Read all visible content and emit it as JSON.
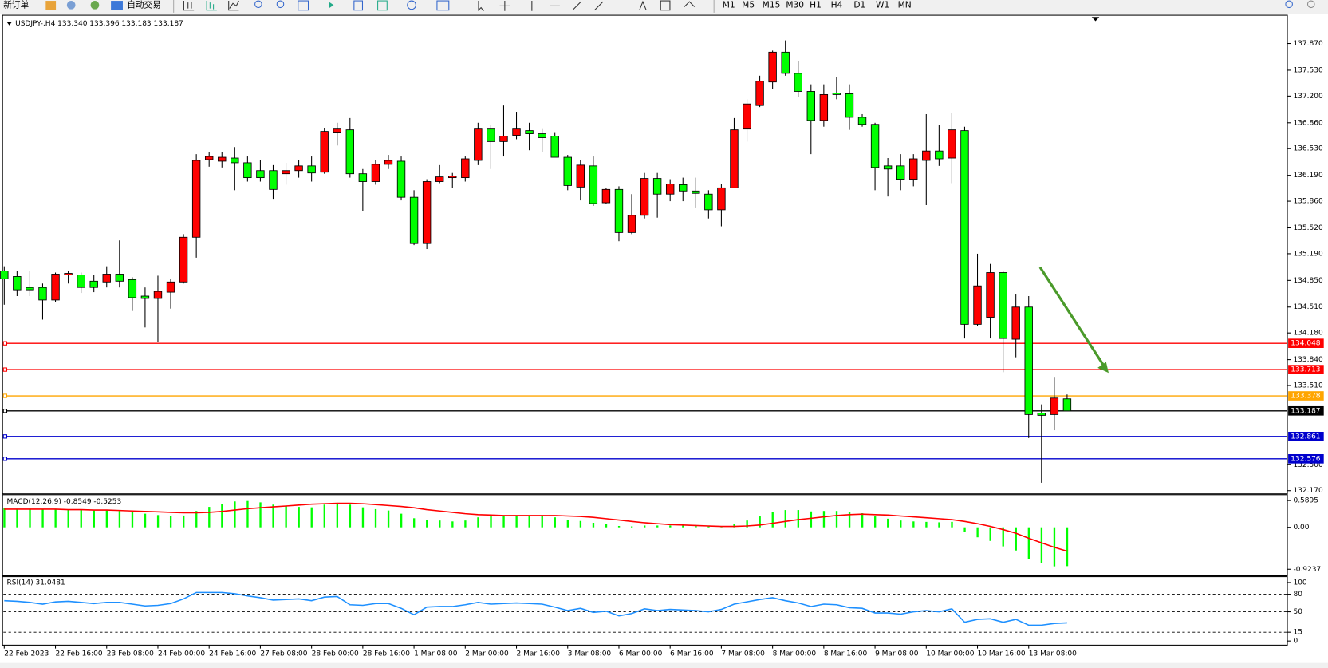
{
  "toolbar": {
    "new_order": "新订单",
    "auto_trading": "自动交易",
    "timeframes": [
      "M1",
      "M5",
      "M15",
      "M30",
      "H1",
      "H4",
      "D1",
      "W1",
      "MN"
    ]
  },
  "chart_data": [
    {
      "type": "candlestick",
      "title": "USDJPY-,H4  133.340 133.396 133.183 133.187",
      "categories": [
        "22 Feb 2023",
        null,
        null,
        null,
        "22 Feb 16:00",
        null,
        null,
        null,
        "23 Feb 08:00",
        null,
        null,
        null,
        "24 Feb 00:00",
        null,
        null,
        null,
        "24 Feb 16:00",
        null,
        null,
        null,
        "27 Feb 08:00",
        null,
        null,
        null,
        "28 Feb 00:00",
        null,
        null,
        null,
        "28 Feb 16:00",
        null,
        null,
        null,
        "1 Mar 08:00",
        null,
        null,
        null,
        "2 Mar 00:00",
        null,
        null,
        null,
        "2 Mar 16:00",
        null,
        null,
        null,
        "3 Mar 08:00",
        null,
        null,
        null,
        "6 Mar 00:00",
        null,
        null,
        null,
        "6 Mar 16:00",
        null,
        null,
        null,
        "7 Mar 08:00",
        null,
        null,
        null,
        "8 Mar 00:00",
        null,
        null,
        null,
        "8 Mar 16:00",
        null,
        null,
        null,
        "9 Mar 08:00",
        null,
        null,
        null,
        "10 Mar 00:00",
        null,
        null,
        null,
        "10 Mar 16:00",
        null,
        null,
        null,
        "13 Mar 08:00",
        null,
        null,
        null
      ],
      "open": [
        134.97,
        134.9,
        134.76,
        134.76,
        134.6,
        134.92,
        134.92,
        134.84,
        134.83,
        134.93,
        134.86,
        134.65,
        134.62,
        134.7,
        134.83,
        135.4,
        136.39,
        136.37,
        136.41,
        136.35,
        136.25,
        136.25,
        136.21,
        136.25,
        136.31,
        136.23,
        136.73,
        136.77,
        136.21,
        136.11,
        136.33,
        136.37,
        135.91,
        135.32,
        136.11,
        136.16,
        136.16,
        136.38,
        136.78,
        136.62,
        136.7,
        136.76,
        136.72,
        136.69,
        136.42,
        136.04,
        136.31,
        135.84,
        136.01,
        135.46,
        135.68,
        136.15,
        135.95,
        136.07,
        135.99,
        135.95,
        135.75,
        136.03,
        136.78,
        137.08,
        137.38,
        137.76,
        137.49,
        137.26,
        136.89,
        137.24,
        137.23,
        136.93,
        136.84,
        136.31,
        136.31,
        136.14,
        136.38,
        136.5,
        136.41,
        136.76,
        134.29,
        134.38,
        134.95,
        134.1,
        134.51,
        133.16,
        133.14,
        133.34
      ],
      "high": [
        135.03,
        134.97,
        134.97,
        134.81,
        134.95,
        134.97,
        134.95,
        134.92,
        135.03,
        135.36,
        134.89,
        134.76,
        134.91,
        134.87,
        135.44,
        136.46,
        136.49,
        136.49,
        136.55,
        136.43,
        136.38,
        136.32,
        136.35,
        136.38,
        136.43,
        136.79,
        136.86,
        136.92,
        136.27,
        136.38,
        136.45,
        136.43,
        136.0,
        136.14,
        136.32,
        136.22,
        136.43,
        136.86,
        136.83,
        137.08,
        137.0,
        136.86,
        136.78,
        136.73,
        136.45,
        136.38,
        136.43,
        136.03,
        136.05,
        135.95,
        136.22,
        136.22,
        136.14,
        136.16,
        136.16,
        136.0,
        136.08,
        136.92,
        137.16,
        137.46,
        137.78,
        137.91,
        137.65,
        137.35,
        137.35,
        137.44,
        137.35,
        136.97,
        136.86,
        136.41,
        136.46,
        136.46,
        136.97,
        136.83,
        136.99,
        136.81,
        135.19,
        135.06,
        134.97,
        134.67,
        134.65,
        133.27,
        133.61,
        133.396
      ],
      "low": [
        134.54,
        134.65,
        134.65,
        134.35,
        134.57,
        134.81,
        134.69,
        134.7,
        134.76,
        134.76,
        134.46,
        134.25,
        134.06,
        134.49,
        134.81,
        135.14,
        136.3,
        136.29,
        136.0,
        136.11,
        136.11,
        135.89,
        136.07,
        136.16,
        136.11,
        136.21,
        136.57,
        136.16,
        135.73,
        136.07,
        136.27,
        135.87,
        135.3,
        135.25,
        136.09,
        136.03,
        136.11,
        136.32,
        136.27,
        136.43,
        136.65,
        136.51,
        136.49,
        136.42,
        136.0,
        135.87,
        135.8,
        135.83,
        135.35,
        135.44,
        135.64,
        135.65,
        135.86,
        135.86,
        135.78,
        135.64,
        135.54,
        136.03,
        136.62,
        137.06,
        137.29,
        137.46,
        137.19,
        136.46,
        136.81,
        137.16,
        136.77,
        136.81,
        136.0,
        135.92,
        136.0,
        136.05,
        135.81,
        136.31,
        136.09,
        134.11,
        134.27,
        134.11,
        133.68,
        133.87,
        132.84,
        132.27,
        132.94,
        133.183
      ],
      "close": [
        134.87,
        134.73,
        134.73,
        134.6,
        134.93,
        134.94,
        134.76,
        134.76,
        134.93,
        134.84,
        134.63,
        134.62,
        134.71,
        134.83,
        135.4,
        136.38,
        136.43,
        136.42,
        136.35,
        136.16,
        136.16,
        136.01,
        136.25,
        136.31,
        136.22,
        136.75,
        136.78,
        136.21,
        136.11,
        136.33,
        136.38,
        135.91,
        135.32,
        136.11,
        136.17,
        136.18,
        136.4,
        136.78,
        136.62,
        136.69,
        136.78,
        136.72,
        136.67,
        136.42,
        136.06,
        136.32,
        135.83,
        136.01,
        135.46,
        135.68,
        136.15,
        135.95,
        136.08,
        135.99,
        135.96,
        135.75,
        136.03,
        136.77,
        137.1,
        137.39,
        137.76,
        137.49,
        137.26,
        136.89,
        137.22,
        137.22,
        136.93,
        136.84,
        136.29,
        136.27,
        136.14,
        136.4,
        136.5,
        136.4,
        136.77,
        134.29,
        134.78,
        134.95,
        134.11,
        134.51,
        133.14,
        133.13,
        133.35,
        133.187
      ],
      "up_color": "#ff0000",
      "down_color": "#00ff00",
      "wick_color": "#000000",
      "ylim": [
        132.14,
        138.22
      ],
      "yticks": [
        {
          "value": 137.87,
          "label": "137.870"
        },
        {
          "value": 137.53,
          "label": "137.530"
        },
        {
          "value": 137.2,
          "label": "137.200"
        },
        {
          "value": 136.86,
          "label": "136.860"
        },
        {
          "value": 136.53,
          "label": "136.530"
        },
        {
          "value": 136.19,
          "label": "136.190"
        },
        {
          "value": 135.86,
          "label": "135.860"
        },
        {
          "value": 135.52,
          "label": "135.520"
        },
        {
          "value": 135.19,
          "label": "135.190"
        },
        {
          "value": 134.85,
          "label": "134.850"
        },
        {
          "value": 134.51,
          "label": "134.510"
        },
        {
          "value": 134.18,
          "label": "134.180"
        },
        {
          "value": 133.84,
          "label": "133.840"
        },
        {
          "value": 133.51,
          "label": "133.510"
        },
        {
          "value": 132.5,
          "label": "132.500"
        },
        {
          "value": 132.17,
          "label": "132.170"
        }
      ],
      "levels": [
        {
          "value": 134.048,
          "label": "134.048",
          "color": "#ff0000"
        },
        {
          "value": 133.713,
          "label": "133.713",
          "color": "#ff0000"
        },
        {
          "value": 133.378,
          "label": "133.378",
          "color": "#ffa500"
        },
        {
          "value": 133.187,
          "label": "133.187",
          "color": "#000000"
        },
        {
          "value": 132.861,
          "label": "132.861",
          "color": "#0000cd"
        },
        {
          "value": 132.576,
          "label": "132.576",
          "color": "#0000cd"
        }
      ]
    },
    {
      "type": "macd",
      "title": "MACD(12,26,9) -0.8549 -0.5253",
      "series": [
        {
          "type": "bar",
          "color": "#00ff00",
          "values": [
            0.42,
            0.41,
            0.41,
            0.4,
            0.4,
            0.39,
            0.38,
            0.37,
            0.37,
            0.36,
            0.33,
            0.3,
            0.27,
            0.25,
            0.26,
            0.36,
            0.45,
            0.52,
            0.57,
            0.58,
            0.55,
            0.5,
            0.47,
            0.45,
            0.44,
            0.5,
            0.54,
            0.5,
            0.44,
            0.4,
            0.37,
            0.3,
            0.2,
            0.17,
            0.15,
            0.13,
            0.15,
            0.22,
            0.24,
            0.25,
            0.26,
            0.26,
            0.25,
            0.22,
            0.17,
            0.14,
            0.1,
            0.07,
            0.03,
            0.02,
            0.04,
            0.04,
            0.04,
            0.04,
            0.03,
            0.02,
            0.02,
            0.08,
            0.15,
            0.24,
            0.34,
            0.38,
            0.38,
            0.35,
            0.36,
            0.36,
            0.33,
            0.31,
            0.24,
            0.19,
            0.15,
            0.13,
            0.12,
            0.11,
            0.12,
            -0.1,
            -0.22,
            -0.3,
            -0.42,
            -0.51,
            -0.7,
            -0.78,
            -0.86,
            -0.8549
          ]
        },
        {
          "type": "line",
          "color": "#ff0000",
          "values": [
            0.4,
            0.4,
            0.4,
            0.4,
            0.4,
            0.39,
            0.39,
            0.38,
            0.38,
            0.37,
            0.36,
            0.35,
            0.34,
            0.33,
            0.32,
            0.32,
            0.33,
            0.35,
            0.38,
            0.41,
            0.43,
            0.45,
            0.47,
            0.49,
            0.51,
            0.52,
            0.53,
            0.53,
            0.52,
            0.5,
            0.48,
            0.46,
            0.43,
            0.39,
            0.36,
            0.33,
            0.3,
            0.28,
            0.27,
            0.26,
            0.26,
            0.26,
            0.26,
            0.26,
            0.25,
            0.24,
            0.22,
            0.19,
            0.16,
            0.13,
            0.1,
            0.08,
            0.06,
            0.05,
            0.04,
            0.03,
            0.02,
            0.02,
            0.03,
            0.05,
            0.09,
            0.13,
            0.17,
            0.2,
            0.23,
            0.26,
            0.28,
            0.29,
            0.28,
            0.27,
            0.25,
            0.23,
            0.21,
            0.19,
            0.17,
            0.13,
            0.08,
            0.02,
            -0.05,
            -0.13,
            -0.24,
            -0.34,
            -0.44,
            -0.5253
          ]
        }
      ],
      "ylim": [
        -1.05,
        0.7
      ],
      "yticks": [
        0.5895,
        {
          "value": 0,
          "label": "0.00"
        },
        -0.9237
      ]
    },
    {
      "type": "line",
      "title": "RSI(14) 31.0481",
      "series": [
        {
          "color": "#1e90ff",
          "values": [
            69,
            68,
            66,
            63,
            67,
            68,
            66,
            64,
            66,
            66,
            63,
            60,
            61,
            64,
            72,
            83,
            83,
            83,
            81,
            77,
            74,
            70,
            71,
            72,
            69,
            75,
            76,
            62,
            61,
            64,
            64,
            56,
            45,
            58,
            59,
            59,
            62,
            66,
            63,
            64,
            65,
            64,
            63,
            58,
            52,
            56,
            49,
            51,
            43,
            47,
            55,
            52,
            54,
            53,
            52,
            50,
            54,
            63,
            67,
            71,
            74,
            69,
            65,
            59,
            63,
            62,
            57,
            56,
            48,
            48,
            46,
            50,
            52,
            50,
            55,
            32,
            37,
            38,
            32,
            37,
            27,
            27,
            30,
            31.0481
          ]
        }
      ],
      "ylim": [
        -5.7,
        108.6
      ],
      "yticks": [
        100,
        80,
        50,
        15,
        0
      ],
      "levels": [
        80,
        50,
        15
      ]
    }
  ]
}
